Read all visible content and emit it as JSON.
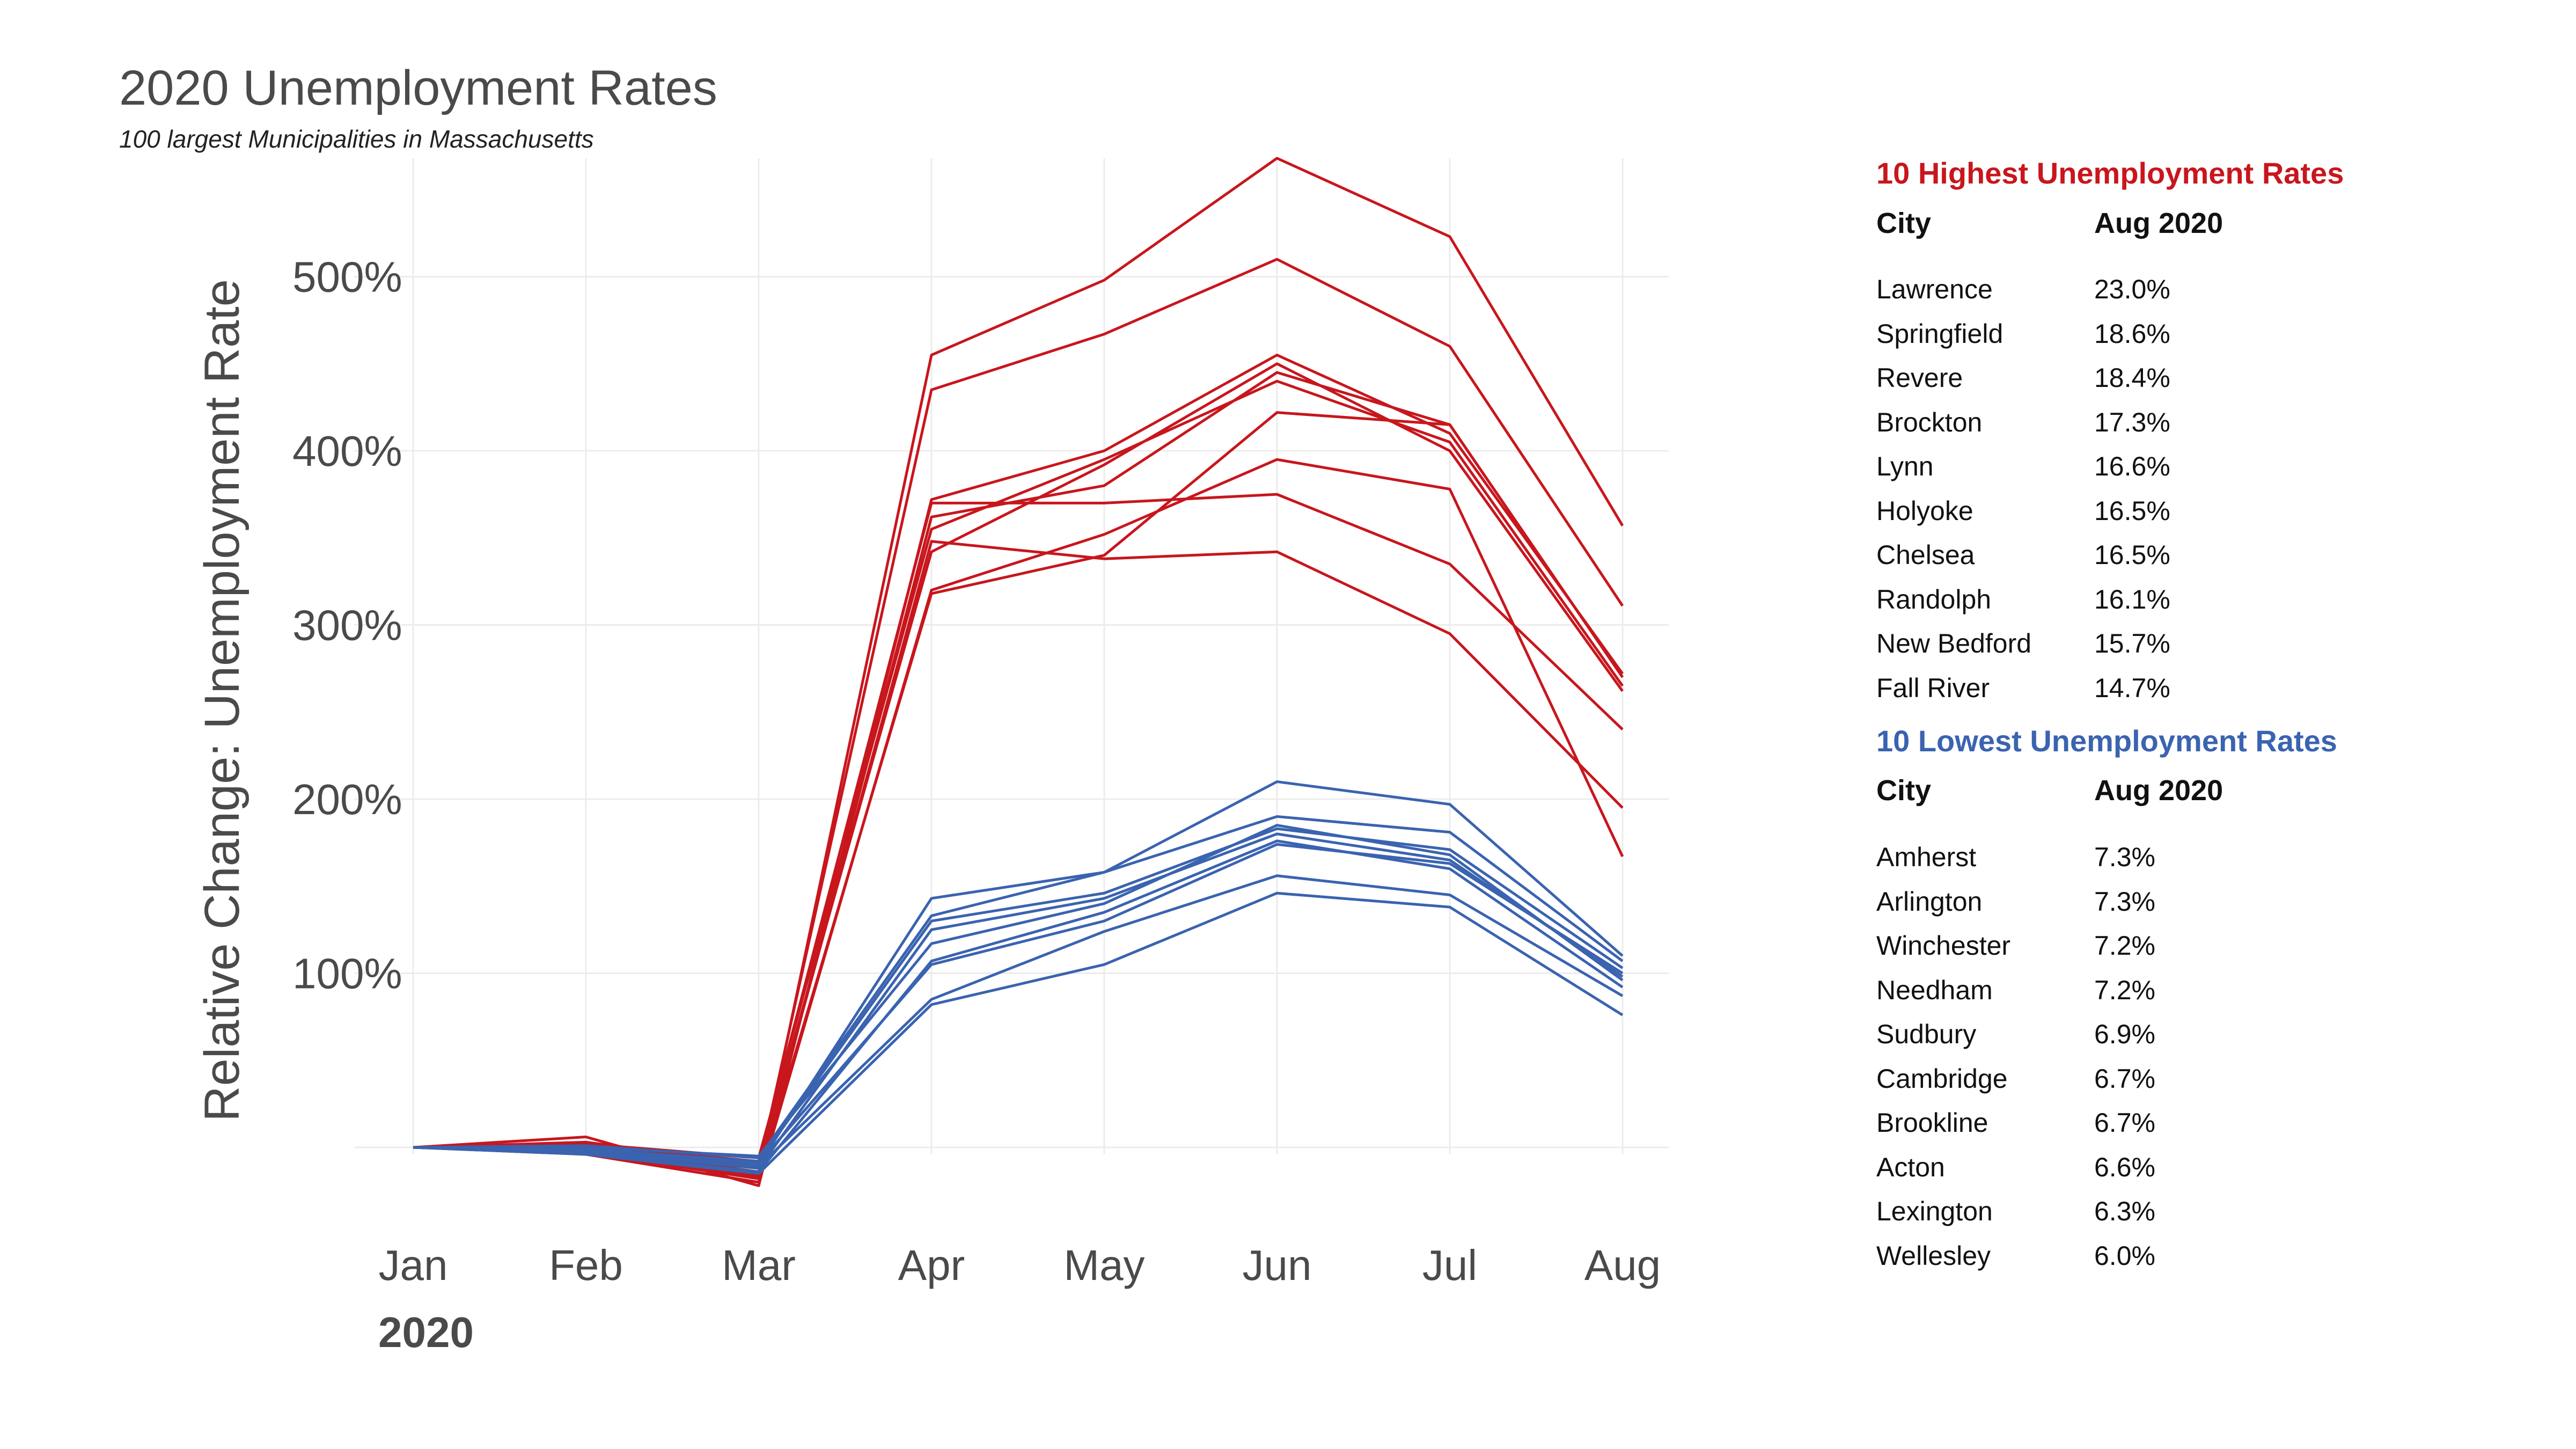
{
  "header": {
    "title": "2020 Unemployment Rates",
    "subtitle": "100 largest Municipalities in Massachusetts"
  },
  "chart_data": {
    "type": "line",
    "title": "2020 Unemployment Rates",
    "subtitle": "100 largest Municipalities in Massachusetts",
    "xlabel": "2020",
    "ylabel": "Relative Change: Unemployment Rate",
    "categories": [
      "Jan",
      "Feb",
      "Mar",
      "Apr",
      "May",
      "Jun",
      "Jul",
      "Aug"
    ],
    "yticks": [
      100,
      200,
      300,
      400,
      500
    ],
    "ytick_labels": [
      "100%",
      "200%",
      "300%",
      "400%",
      "500%"
    ],
    "ylim": [
      -50,
      570
    ],
    "grid": true,
    "colors": {
      "high": "#c8161d",
      "low": "#3a63b0"
    },
    "series": [
      {
        "name": "high-1",
        "group": "high",
        "values": [
          0,
          -3,
          -16,
          455,
          498,
          568,
          523,
          357
        ]
      },
      {
        "name": "high-2",
        "group": "high",
        "values": [
          0,
          -2,
          -12,
          435,
          467,
          510,
          460,
          311
        ]
      },
      {
        "name": "high-3",
        "group": "high",
        "values": [
          0,
          6,
          -22,
          372,
          400,
          455,
          410,
          272
        ]
      },
      {
        "name": "high-4",
        "group": "high",
        "values": [
          0,
          1,
          -8,
          370,
          370,
          375,
          335,
          240
        ]
      },
      {
        "name": "high-5",
        "group": "high",
        "values": [
          0,
          -3,
          -18,
          362,
          380,
          445,
          415,
          270
        ]
      },
      {
        "name": "high-6",
        "group": "high",
        "values": [
          0,
          2,
          -6,
          355,
          395,
          440,
          405,
          265
        ]
      },
      {
        "name": "high-7",
        "group": "high",
        "values": [
          0,
          -1,
          -14,
          348,
          338,
          342,
          295,
          195
        ]
      },
      {
        "name": "high-8",
        "group": "high",
        "values": [
          0,
          3,
          -10,
          342,
          392,
          450,
          400,
          262
        ]
      },
      {
        "name": "high-9",
        "group": "high",
        "values": [
          0,
          -4,
          -20,
          320,
          352,
          395,
          378,
          167
        ]
      },
      {
        "name": "high-10",
        "group": "high",
        "values": [
          0,
          0,
          -17,
          318,
          340,
          422,
          415,
          270
        ]
      },
      {
        "name": "low-1",
        "group": "low",
        "values": [
          0,
          -3,
          -10,
          143,
          158,
          210,
          197,
          110
        ]
      },
      {
        "name": "low-2",
        "group": "low",
        "values": [
          0,
          1,
          -6,
          133,
          158,
          190,
          181,
          107
        ]
      },
      {
        "name": "low-3",
        "group": "low",
        "values": [
          0,
          -1,
          -8,
          130,
          146,
          183,
          171,
          103
        ]
      },
      {
        "name": "low-4",
        "group": "low",
        "values": [
          0,
          -2,
          -12,
          125,
          143,
          180,
          165,
          98
        ]
      },
      {
        "name": "low-5",
        "group": "low",
        "values": [
          0,
          0,
          -5,
          117,
          140,
          185,
          168,
          96
        ]
      },
      {
        "name": "low-6",
        "group": "low",
        "values": [
          0,
          -3,
          -14,
          107,
          135,
          176,
          160,
          92
        ]
      },
      {
        "name": "low-7",
        "group": "low",
        "values": [
          0,
          -1,
          -9,
          105,
          130,
          174,
          163,
          100
        ]
      },
      {
        "name": "low-8",
        "group": "low",
        "values": [
          0,
          -2,
          -11,
          85,
          124,
          156,
          145,
          87
        ]
      },
      {
        "name": "low-9",
        "group": "low",
        "values": [
          0,
          -4,
          -15,
          82,
          105,
          146,
          138,
          76
        ]
      }
    ]
  },
  "tables": {
    "highest": {
      "heading": "10 Highest Unemployment Rates",
      "col_city": "City",
      "col_value": "Aug 2020",
      "rows": [
        {
          "city": "Lawrence",
          "value": "23.0%"
        },
        {
          "city": "Springfield",
          "value": "18.6%"
        },
        {
          "city": "Revere",
          "value": "18.4%"
        },
        {
          "city": "Brockton",
          "value": "17.3%"
        },
        {
          "city": "Lynn",
          "value": "16.6%"
        },
        {
          "city": "Holyoke",
          "value": "16.5%"
        },
        {
          "city": "Chelsea",
          "value": "16.5%"
        },
        {
          "city": "Randolph",
          "value": "16.1%"
        },
        {
          "city": "New Bedford",
          "value": "15.7%"
        },
        {
          "city": "Fall River",
          "value": "14.7%"
        }
      ]
    },
    "lowest": {
      "heading": "10 Lowest Unemployment Rates",
      "col_city": "City",
      "col_value": "Aug 2020",
      "rows": [
        {
          "city": "Amherst",
          "value": "7.3%"
        },
        {
          "city": "Arlington",
          "value": "7.3%"
        },
        {
          "city": "Winchester",
          "value": "7.2%"
        },
        {
          "city": "Needham",
          "value": "7.2%"
        },
        {
          "city": "Sudbury",
          "value": "6.9%"
        },
        {
          "city": "Cambridge",
          "value": "6.7%"
        },
        {
          "city": "Brookline",
          "value": "6.7%"
        },
        {
          "city": "Acton",
          "value": "6.6%"
        },
        {
          "city": "Lexington",
          "value": "6.3%"
        },
        {
          "city": "Wellesley",
          "value": "6.0%"
        }
      ]
    }
  }
}
